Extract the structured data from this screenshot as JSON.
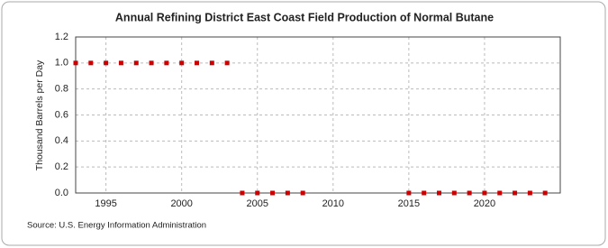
{
  "chart_data": {
    "type": "scatter",
    "title": "Annual Refining District East Coast Field Production of Normal Butane",
    "y_label": "Thousand Barrels per Day",
    "source": "Source: U.S. Energy Information Administration",
    "x": [
      1993,
      1994,
      1995,
      1996,
      1997,
      1998,
      1999,
      2000,
      2001,
      2002,
      2003,
      2004,
      2005,
      2006,
      2007,
      2008,
      2015,
      2016,
      2017,
      2018,
      2019,
      2020,
      2021,
      2022,
      2023,
      2024
    ],
    "values": [
      1,
      1,
      1,
      1,
      1,
      1,
      1,
      1,
      1,
      1,
      1,
      0,
      0,
      0,
      0,
      0,
      0,
      0,
      0,
      0,
      0,
      0,
      0,
      0,
      0,
      0
    ],
    "color": "#cc0000",
    "xlim": [
      1993,
      2025
    ],
    "xticks": [
      1995,
      2000,
      2005,
      2010,
      2015,
      2020
    ],
    "ylim": [
      0,
      1.2
    ],
    "yticks": [
      {
        "value": 0,
        "label": "0.0"
      },
      {
        "value": 0.2,
        "label": "0.2"
      },
      {
        "value": 0.4,
        "label": "0.4"
      },
      {
        "value": 0.6,
        "label": "0.6"
      },
      {
        "value": 0.8,
        "label": "0.8"
      },
      {
        "value": 1,
        "label": "1.0"
      },
      {
        "value": 1.2,
        "label": "1.2"
      }
    ],
    "grid": true
  }
}
